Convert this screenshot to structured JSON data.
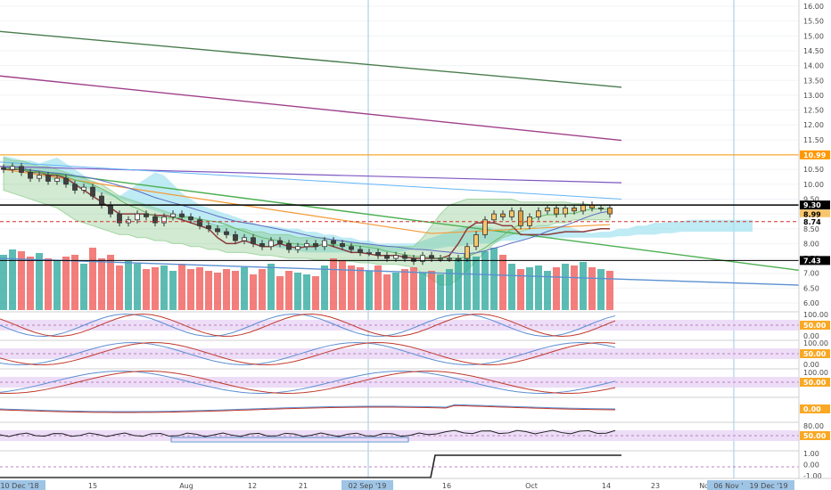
{
  "chart_data": {
    "type": "candlestick",
    "price_axis": {
      "range": [
        5.7,
        16.15
      ],
      "ticks": [
        "16.00",
        "15.50",
        "15.00",
        "14.50",
        "14.00",
        "13.50",
        "13.00",
        "12.50",
        "12.00",
        "11.50",
        "11.00",
        "10.50",
        "10.00",
        "9.50",
        "9.00",
        "8.50",
        "8.00",
        "7.50",
        "7.00",
        "6.50",
        "6.00"
      ]
    },
    "price_badges": [
      {
        "label": "10.99",
        "value": 10.99,
        "bg": "#ff9800",
        "fg": "#ffffff",
        "line": "#ff9800",
        "dash": false
      },
      {
        "label": "9.30",
        "value": 9.3,
        "bg": "#000000",
        "fg": "#ffffff",
        "line": "#000000",
        "dash": false
      },
      {
        "label": "8.99",
        "value": 8.99,
        "bg": "#f7c56b",
        "fg": "#000000",
        "line": null,
        "dash": false
      },
      {
        "label": "8.74",
        "value": 8.74,
        "bg": "#ffffff",
        "fg": "#000000",
        "line": "#d32f2f",
        "dash": true
      },
      {
        "label": "7.43",
        "value": 7.43,
        "bg": "#000000",
        "fg": "#ffffff",
        "line": "#000000",
        "dash": false
      }
    ],
    "trendlines": [
      {
        "name": "green",
        "color": "#4a7c4e",
        "x1": 0,
        "y1": 15.15,
        "x2": 51,
        "y2": 13.27
      },
      {
        "name": "purple",
        "color": "#a0408a",
        "x1": 0,
        "y1": 13.65,
        "x2": 51,
        "y2": 11.48
      },
      {
        "name": "blue-lower",
        "color": "#5b8fd1",
        "x1": 0,
        "y1": 7.5,
        "x2": 66,
        "y2": 6.6
      },
      {
        "name": "green-dash",
        "color": "#4caf50",
        "x1": 0,
        "y1": 10.6,
        "x2": 66,
        "y2": 7.1
      }
    ],
    "candles_close": [
      10.5,
      10.6,
      10.4,
      10.2,
      10.3,
      10.1,
      10.2,
      10.0,
      9.8,
      9.9,
      9.6,
      9.3,
      9.0,
      8.7,
      8.8,
      9.0,
      8.9,
      8.7,
      8.9,
      9.0,
      8.9,
      8.8,
      8.6,
      8.5,
      8.4,
      8.3,
      8.1,
      8.2,
      8.0,
      7.9,
      8.1,
      8.0,
      7.8,
      7.9,
      8.0,
      7.9,
      8.1,
      8.0,
      7.9,
      7.8,
      7.7,
      7.7,
      7.6,
      7.5,
      7.6,
      7.5,
      7.4,
      7.6,
      7.5,
      7.5,
      7.5,
      7.5,
      7.9,
      8.3,
      8.8,
      9.0,
      8.9,
      9.1,
      8.6,
      8.9,
      9.1,
      9.2,
      9.0,
      9.2,
      9.1,
      9.3,
      9.2,
      9.2,
      9.0
    ],
    "volume": [
      0.62,
      0.68,
      0.66,
      0.6,
      0.64,
      0.58,
      0.55,
      0.6,
      0.62,
      0.52,
      0.7,
      0.58,
      0.62,
      0.5,
      0.55,
      0.52,
      0.46,
      0.48,
      0.5,
      0.44,
      0.52,
      0.46,
      0.48,
      0.44,
      0.42,
      0.46,
      0.44,
      0.48,
      0.4,
      0.46,
      0.52,
      0.38,
      0.44,
      0.42,
      0.4,
      0.38,
      0.5,
      0.58,
      0.56,
      0.5,
      0.48,
      0.44,
      0.5,
      0.4,
      0.42,
      0.46,
      0.48,
      0.42,
      0.44,
      0.4,
      0.46,
      0.58,
      0.64,
      0.6,
      0.66,
      0.7,
      0.62,
      0.52,
      0.46,
      0.48,
      0.5,
      0.44,
      0.48,
      0.52,
      0.5,
      0.54,
      0.48,
      0.46,
      0.44
    ],
    "x_ticks": [
      "10 Dec '18",
      "15",
      "Aug",
      "12",
      "21",
      "02 Sep '19",
      "16",
      "Oct",
      "14",
      "23",
      "Nov",
      "06 Nov '19",
      "19 Dec '19"
    ],
    "oscillators": [
      {
        "name": "osc1",
        "levels": [
          "100.00",
          "50.00",
          "0.00"
        ],
        "badge": "50.00"
      },
      {
        "name": "osc2",
        "levels": [
          "100.00",
          "50.00",
          "0.00"
        ],
        "badge": "50.00"
      },
      {
        "name": "osc3",
        "levels": [
          "100.00",
          "50.00"
        ],
        "badge": "50.00"
      },
      {
        "name": "osc4",
        "levels": [
          "0.00"
        ],
        "badge": "0.00"
      },
      {
        "name": "osc5",
        "levels": [
          "80.00",
          "50.00"
        ],
        "badge": "50.00"
      },
      {
        "name": "osc6",
        "levels": [
          "1.00",
          "0.00",
          "-1.00"
        ],
        "badge": null
      }
    ]
  },
  "colors": {
    "up": "#26a69a",
    "down": "#ef5350",
    "cloud": "#a8e4f0",
    "rsi_band": "#e9d4f5"
  }
}
